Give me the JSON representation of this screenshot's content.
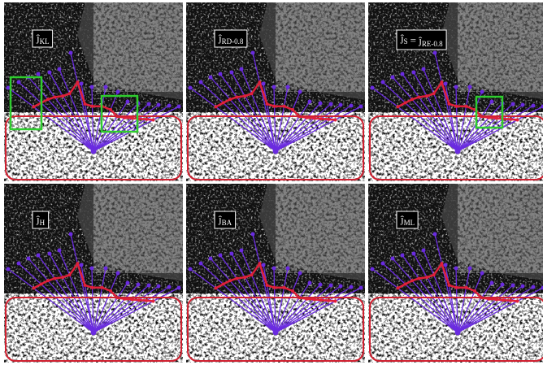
{
  "panels": [
    {
      "label": [
        {
          "symbol": "ĵ",
          "sub": "KL"
        }
      ]
    },
    {
      "label": [
        {
          "symbol": "ĵ",
          "sub": "RD-0.8"
        }
      ]
    },
    {
      "label": [
        {
          "symbol": "ĵ",
          "sub": "S"
        },
        {
          "symbol": "= ĵ",
          "sub": "RE-0.8"
        }
      ]
    },
    {
      "label": [
        {
          "symbol": "ĵ",
          "sub": "H"
        }
      ]
    },
    {
      "label": [
        {
          "symbol": "ĵ",
          "sub": "BA"
        }
      ]
    },
    {
      "label": [
        {
          "symbol": "ĵ",
          "sub": "ML"
        }
      ]
    }
  ]
}
